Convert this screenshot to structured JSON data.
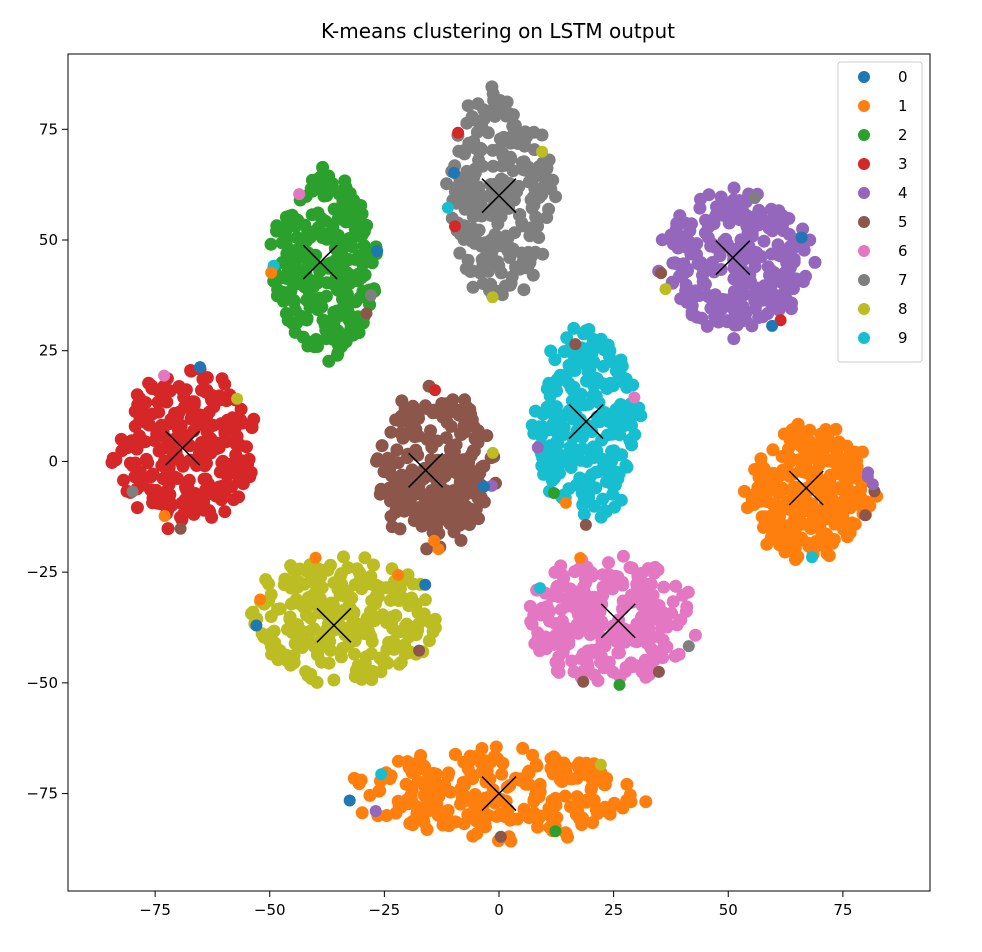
{
  "chart_data": {
    "type": "scatter",
    "title": "K-means clustering on LSTM output",
    "xlabel": "",
    "ylabel": "",
    "xlim": [
      -94,
      94
    ],
    "ylim": [
      -97,
      92
    ],
    "xticks": [
      -75,
      -50,
      -25,
      0,
      25,
      50,
      75
    ],
    "yticks": [
      -75,
      -50,
      -25,
      0,
      25,
      50,
      75
    ],
    "xtick_labels": [
      "−75",
      "−50",
      "−25",
      "0",
      "25",
      "50",
      "75"
    ],
    "ytick_labels": [
      "−75",
      "−50",
      "−25",
      "0",
      "25",
      "50",
      "75"
    ],
    "grid": false,
    "legend_position": "top-right",
    "legend": [
      "0",
      "1",
      "2",
      "3",
      "4",
      "5",
      "6",
      "7",
      "8",
      "9"
    ],
    "colors": [
      "#1f77b4",
      "#ff7f0e",
      "#2ca02c",
      "#d62728",
      "#9467bd",
      "#8c564b",
      "#e377c2",
      "#7f7f7f",
      "#bcbd22",
      "#17becf"
    ],
    "centroid_color": "#000000",
    "series": [
      {
        "name": "0",
        "regions": []
      },
      {
        "name": "1",
        "regions": [
          {
            "cx": 68,
            "cy": -7,
            "rx": 13,
            "ry": 15
          },
          {
            "cx": 0,
            "cy": -75,
            "rx": 30,
            "ry": 10
          }
        ]
      },
      {
        "name": "2",
        "regions": [
          {
            "cx": -38,
            "cy": 44,
            "rx": 11,
            "ry": 20
          }
        ]
      },
      {
        "name": "3",
        "regions": [
          {
            "cx": -68,
            "cy": 3,
            "rx": 15,
            "ry": 17
          }
        ]
      },
      {
        "name": "4",
        "regions": [
          {
            "cx": 52,
            "cy": 45,
            "rx": 16,
            "ry": 16
          }
        ]
      },
      {
        "name": "5",
        "regions": [
          {
            "cx": -14,
            "cy": -2,
            "rx": 12,
            "ry": 17
          }
        ]
      },
      {
        "name": "6",
        "regions": [
          {
            "cx": 24,
            "cy": -36,
            "rx": 18,
            "ry": 14
          }
        ]
      },
      {
        "name": "7",
        "regions": [
          {
            "cx": 0,
            "cy": 60,
            "rx": 11,
            "ry": 22
          }
        ]
      },
      {
        "name": "8",
        "regions": [
          {
            "cx": -34,
            "cy": -36,
            "rx": 20,
            "ry": 14
          }
        ]
      },
      {
        "name": "9",
        "regions": [
          {
            "cx": 19,
            "cy": 8,
            "rx": 11,
            "ry": 21
          }
        ]
      }
    ],
    "centroids": [
      {
        "x": 0,
        "y": -75
      },
      {
        "x": 67,
        "y": -6
      },
      {
        "x": -39,
        "y": 45
      },
      {
        "x": -69,
        "y": 3
      },
      {
        "x": 51,
        "y": 46
      },
      {
        "x": -16,
        "y": -2
      },
      {
        "x": 26,
        "y": -36
      },
      {
        "x": 0,
        "y": 60
      },
      {
        "x": -36,
        "y": -37
      },
      {
        "x": 19,
        "y": 9
      }
    ]
  }
}
